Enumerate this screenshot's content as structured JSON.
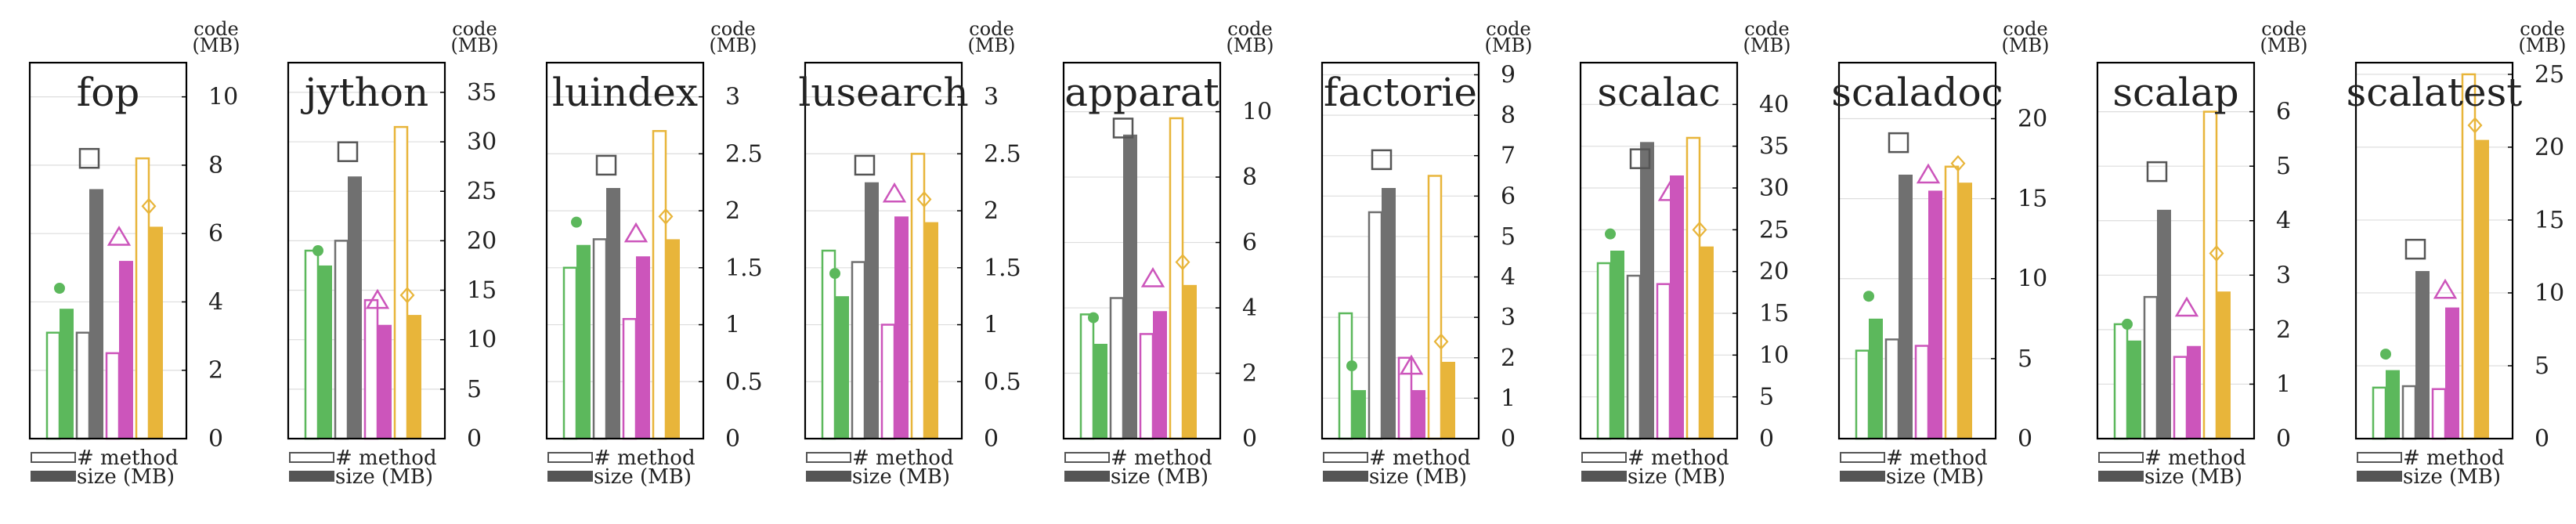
{
  "colors": {
    "green": "#5cb85c",
    "gray": "#707070",
    "magenta": "#cc55bb",
    "orange": "#e8b53a",
    "frame": "#000000",
    "grid": "#dddddd",
    "green_marker": "#5cb85c",
    "gray_marker": "#555555",
    "magenta_marker": "#cc55bb",
    "orange_marker": "#e8b53a"
  },
  "legend": {
    "method_label": "# method",
    "size_label": "size (MB)"
  },
  "axis_title": {
    "line1": "code",
    "line2": "(MB)"
  },
  "chart_data": [
    {
      "type": "bar",
      "title": "fop",
      "ylim": [
        0,
        11
      ],
      "ticks": [
        0,
        2,
        4,
        6,
        8,
        10
      ],
      "bars": [
        {
          "series": "green",
          "method": 3.1,
          "size": 3.8,
          "code": 4.4
        },
        {
          "series": "gray",
          "method": 3.1,
          "size": 7.3,
          "code": 8.2
        },
        {
          "series": "magenta",
          "method": 2.5,
          "size": 5.2,
          "code": 5.9
        },
        {
          "series": "orange",
          "method": 8.2,
          "size": 6.2,
          "code": 6.8
        }
      ]
    },
    {
      "type": "bar",
      "title": "jython",
      "ylim": [
        0,
        38
      ],
      "ticks": [
        0,
        5,
        10,
        15,
        20,
        25,
        30,
        35
      ],
      "bars": [
        {
          "series": "green",
          "method": 19,
          "size": 17.5,
          "code": 19
        },
        {
          "series": "gray",
          "method": 20,
          "size": 26.5,
          "code": 29
        },
        {
          "series": "magenta",
          "method": 14,
          "size": 11.5,
          "code": 14
        },
        {
          "series": "orange",
          "method": 31.5,
          "size": 12.5,
          "code": 14.5
        }
      ]
    },
    {
      "type": "bar",
      "title": "luindex",
      "ylim": [
        0,
        3.3
      ],
      "ticks": [
        0,
        0.5,
        1,
        1.5,
        2,
        2.5,
        3
      ],
      "bars": [
        {
          "series": "green",
          "method": 1.5,
          "size": 1.7,
          "code": 1.9
        },
        {
          "series": "gray",
          "method": 1.75,
          "size": 2.2,
          "code": 2.4
        },
        {
          "series": "magenta",
          "method": 1.05,
          "size": 1.6,
          "code": 1.8
        },
        {
          "series": "orange",
          "method": 2.7,
          "size": 1.75,
          "code": 1.95
        }
      ]
    },
    {
      "type": "bar",
      "title": "lusearch",
      "ylim": [
        0,
        3.3
      ],
      "ticks": [
        0,
        0.5,
        1,
        1.5,
        2,
        2.5,
        3
      ],
      "bars": [
        {
          "series": "green",
          "method": 1.65,
          "size": 1.25,
          "code": 1.45
        },
        {
          "series": "gray",
          "method": 1.55,
          "size": 2.25,
          "code": 2.4
        },
        {
          "series": "magenta",
          "method": 1.0,
          "size": 1.95,
          "code": 2.15
        },
        {
          "series": "orange",
          "method": 2.5,
          "size": 1.9,
          "code": 2.1
        }
      ]
    },
    {
      "type": "bar",
      "title": "apparat",
      "ylim": [
        0,
        11.5
      ],
      "ticks": [
        0,
        2,
        4,
        6,
        8,
        10
      ],
      "bars": [
        {
          "series": "green",
          "method": 3.8,
          "size": 2.9,
          "code": 3.7
        },
        {
          "series": "gray",
          "method": 4.3,
          "size": 9.3,
          "code": 9.5
        },
        {
          "series": "magenta",
          "method": 3.2,
          "size": 3.9,
          "code": 4.9
        },
        {
          "series": "orange",
          "method": 9.8,
          "size": 4.7,
          "code": 5.4
        }
      ]
    },
    {
      "type": "bar",
      "title": "factorie",
      "ylim": [
        0,
        9.3
      ],
      "ticks": [
        0,
        1,
        2,
        3,
        4,
        5,
        6,
        7,
        8,
        9
      ],
      "bars": [
        {
          "series": "green",
          "method": 3.1,
          "size": 1.2,
          "code": 1.8
        },
        {
          "series": "gray",
          "method": 5.6,
          "size": 6.2,
          "code": 6.9
        },
        {
          "series": "magenta",
          "method": 2.0,
          "size": 1.2,
          "code": 1.8
        },
        {
          "series": "orange",
          "method": 6.5,
          "size": 1.9,
          "code": 2.4
        }
      ]
    },
    {
      "type": "bar",
      "title": "scalac",
      "ylim": [
        0,
        45
      ],
      "ticks": [
        0,
        5,
        10,
        15,
        20,
        25,
        30,
        35,
        40
      ],
      "bars": [
        {
          "series": "green",
          "method": 21,
          "size": 22.5,
          "code": 24.5
        },
        {
          "series": "gray",
          "method": 19.5,
          "size": 35.5,
          "code": 33.5
        },
        {
          "series": "magenta",
          "method": 18.5,
          "size": 31.5,
          "code": 29.5
        },
        {
          "series": "orange",
          "method": 36,
          "size": 23,
          "code": 25
        }
      ]
    },
    {
      "type": "bar",
      "title": "scaladoc",
      "ylim": [
        0,
        23.5
      ],
      "ticks": [
        0,
        5,
        10,
        15,
        20
      ],
      "bars": [
        {
          "series": "green",
          "method": 5.5,
          "size": 7.5,
          "code": 8.9
        },
        {
          "series": "gray",
          "method": 6.2,
          "size": 16.5,
          "code": 18.5
        },
        {
          "series": "magenta",
          "method": 5.8,
          "size": 15.5,
          "code": 16.5
        },
        {
          "series": "orange",
          "method": 17.0,
          "size": 16.0,
          "code": 17.2
        }
      ]
    },
    {
      "type": "bar",
      "title": "scalap",
      "ylim": [
        0,
        6.9
      ],
      "ticks": [
        0,
        1,
        2,
        3,
        4,
        5,
        6
      ],
      "bars": [
        {
          "series": "green",
          "method": 2.1,
          "size": 1.8,
          "code": 2.1
        },
        {
          "series": "gray",
          "method": 2.6,
          "size": 4.2,
          "code": 4.9
        },
        {
          "series": "magenta",
          "method": 1.5,
          "size": 1.7,
          "code": 2.4
        },
        {
          "series": "orange",
          "method": 6.0,
          "size": 2.7,
          "code": 3.4
        }
      ]
    },
    {
      "type": "bar",
      "title": "scalatest",
      "ylim": [
        0,
        25.8
      ],
      "ticks": [
        0,
        5,
        10,
        15,
        20,
        25
      ],
      "bars": [
        {
          "series": "green",
          "method": 3.5,
          "size": 4.7,
          "code": 5.8
        },
        {
          "series": "gray",
          "method": 3.6,
          "size": 11.5,
          "code": 13.0
        },
        {
          "series": "magenta",
          "method": 3.4,
          "size": 9.0,
          "code": 10.2
        },
        {
          "series": "orange",
          "method": 25.0,
          "size": 20.5,
          "code": 21.5
        }
      ]
    }
  ]
}
